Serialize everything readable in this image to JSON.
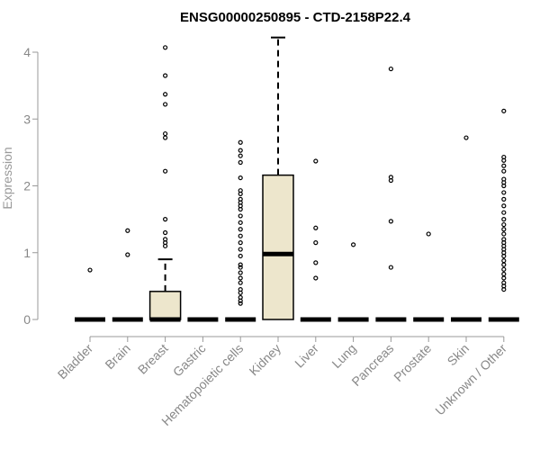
{
  "chart_data": {
    "type": "box",
    "title": "ENSG00000250895 - CTD-2158P22.4",
    "xlabel": "",
    "ylabel": "Expression",
    "ylim": [
      0,
      4.2
    ],
    "yticks": [
      0,
      1,
      2,
      3,
      4
    ],
    "box_fill": "#ede6cc",
    "categories": [
      "Bladder",
      "Brain",
      "Breast",
      "Gastric",
      "Hematopoietic cells",
      "Kidney",
      "Liver",
      "Lung",
      "Pancreas",
      "Prostate",
      "Skin",
      "Unknown / Other"
    ],
    "boxes": [
      {
        "q1": 0,
        "median": 0,
        "q3": 0,
        "whisker_low": 0,
        "whisker_high": 0,
        "outliers": [
          0.74
        ]
      },
      {
        "q1": 0,
        "median": 0,
        "q3": 0,
        "whisker_low": 0,
        "whisker_high": 0,
        "outliers": [
          0.97,
          1.33
        ]
      },
      {
        "q1": 0,
        "median": 0,
        "q3": 0.42,
        "whisker_low": 0,
        "whisker_high": 0.9,
        "outliers": [
          1.1,
          1.15,
          1.2,
          1.3,
          1.5,
          2.22,
          2.72,
          2.78,
          3.22,
          3.37,
          3.65,
          4.07
        ]
      },
      {
        "q1": 0,
        "median": 0,
        "q3": 0,
        "whisker_low": 0,
        "whisker_high": 0,
        "outliers": []
      },
      {
        "q1": 0,
        "median": 0,
        "q3": 0,
        "whisker_low": 0,
        "whisker_high": 0,
        "outliers": [
          0.24,
          0.28,
          0.33,
          0.4,
          0.45,
          0.55,
          0.62,
          0.7,
          0.78,
          0.82,
          0.95,
          1.05,
          1.15,
          1.25,
          1.35,
          1.45,
          1.55,
          1.65,
          1.7,
          1.75,
          1.8,
          1.88,
          1.93,
          2.12,
          2.35,
          2.45,
          2.53,
          2.65
        ]
      },
      {
        "q1": 0,
        "median": 0.98,
        "q3": 2.16,
        "whisker_low": 0,
        "whisker_high": 4.22,
        "outliers": []
      },
      {
        "q1": 0,
        "median": 0,
        "q3": 0,
        "whisker_low": 0,
        "whisker_high": 0,
        "outliers": [
          0.62,
          0.85,
          1.15,
          1.37,
          2.37
        ]
      },
      {
        "q1": 0,
        "median": 0,
        "q3": 0,
        "whisker_low": 0,
        "whisker_high": 0,
        "outliers": [
          1.12
        ]
      },
      {
        "q1": 0,
        "median": 0,
        "q3": 0,
        "whisker_low": 0,
        "whisker_high": 0,
        "outliers": [
          0.78,
          1.47,
          2.08,
          2.13,
          3.75
        ]
      },
      {
        "q1": 0,
        "median": 0,
        "q3": 0,
        "whisker_low": 0,
        "whisker_high": 0,
        "outliers": [
          1.28
        ]
      },
      {
        "q1": 0,
        "median": 0,
        "q3": 0,
        "whisker_low": 0,
        "whisker_high": 0,
        "outliers": [
          2.72
        ]
      },
      {
        "q1": 0,
        "median": 0,
        "q3": 0,
        "whisker_low": 0,
        "whisker_high": 0,
        "outliers": [
          0.45,
          0.5,
          0.55,
          0.62,
          0.68,
          0.75,
          0.82,
          0.88,
          0.95,
          1.0,
          1.05,
          1.1,
          1.15,
          1.2,
          1.28,
          1.35,
          1.42,
          1.5,
          1.6,
          1.7,
          1.8,
          1.9,
          2.0,
          2.05,
          2.1,
          2.22,
          2.3,
          2.38,
          2.43,
          3.12
        ]
      }
    ]
  }
}
